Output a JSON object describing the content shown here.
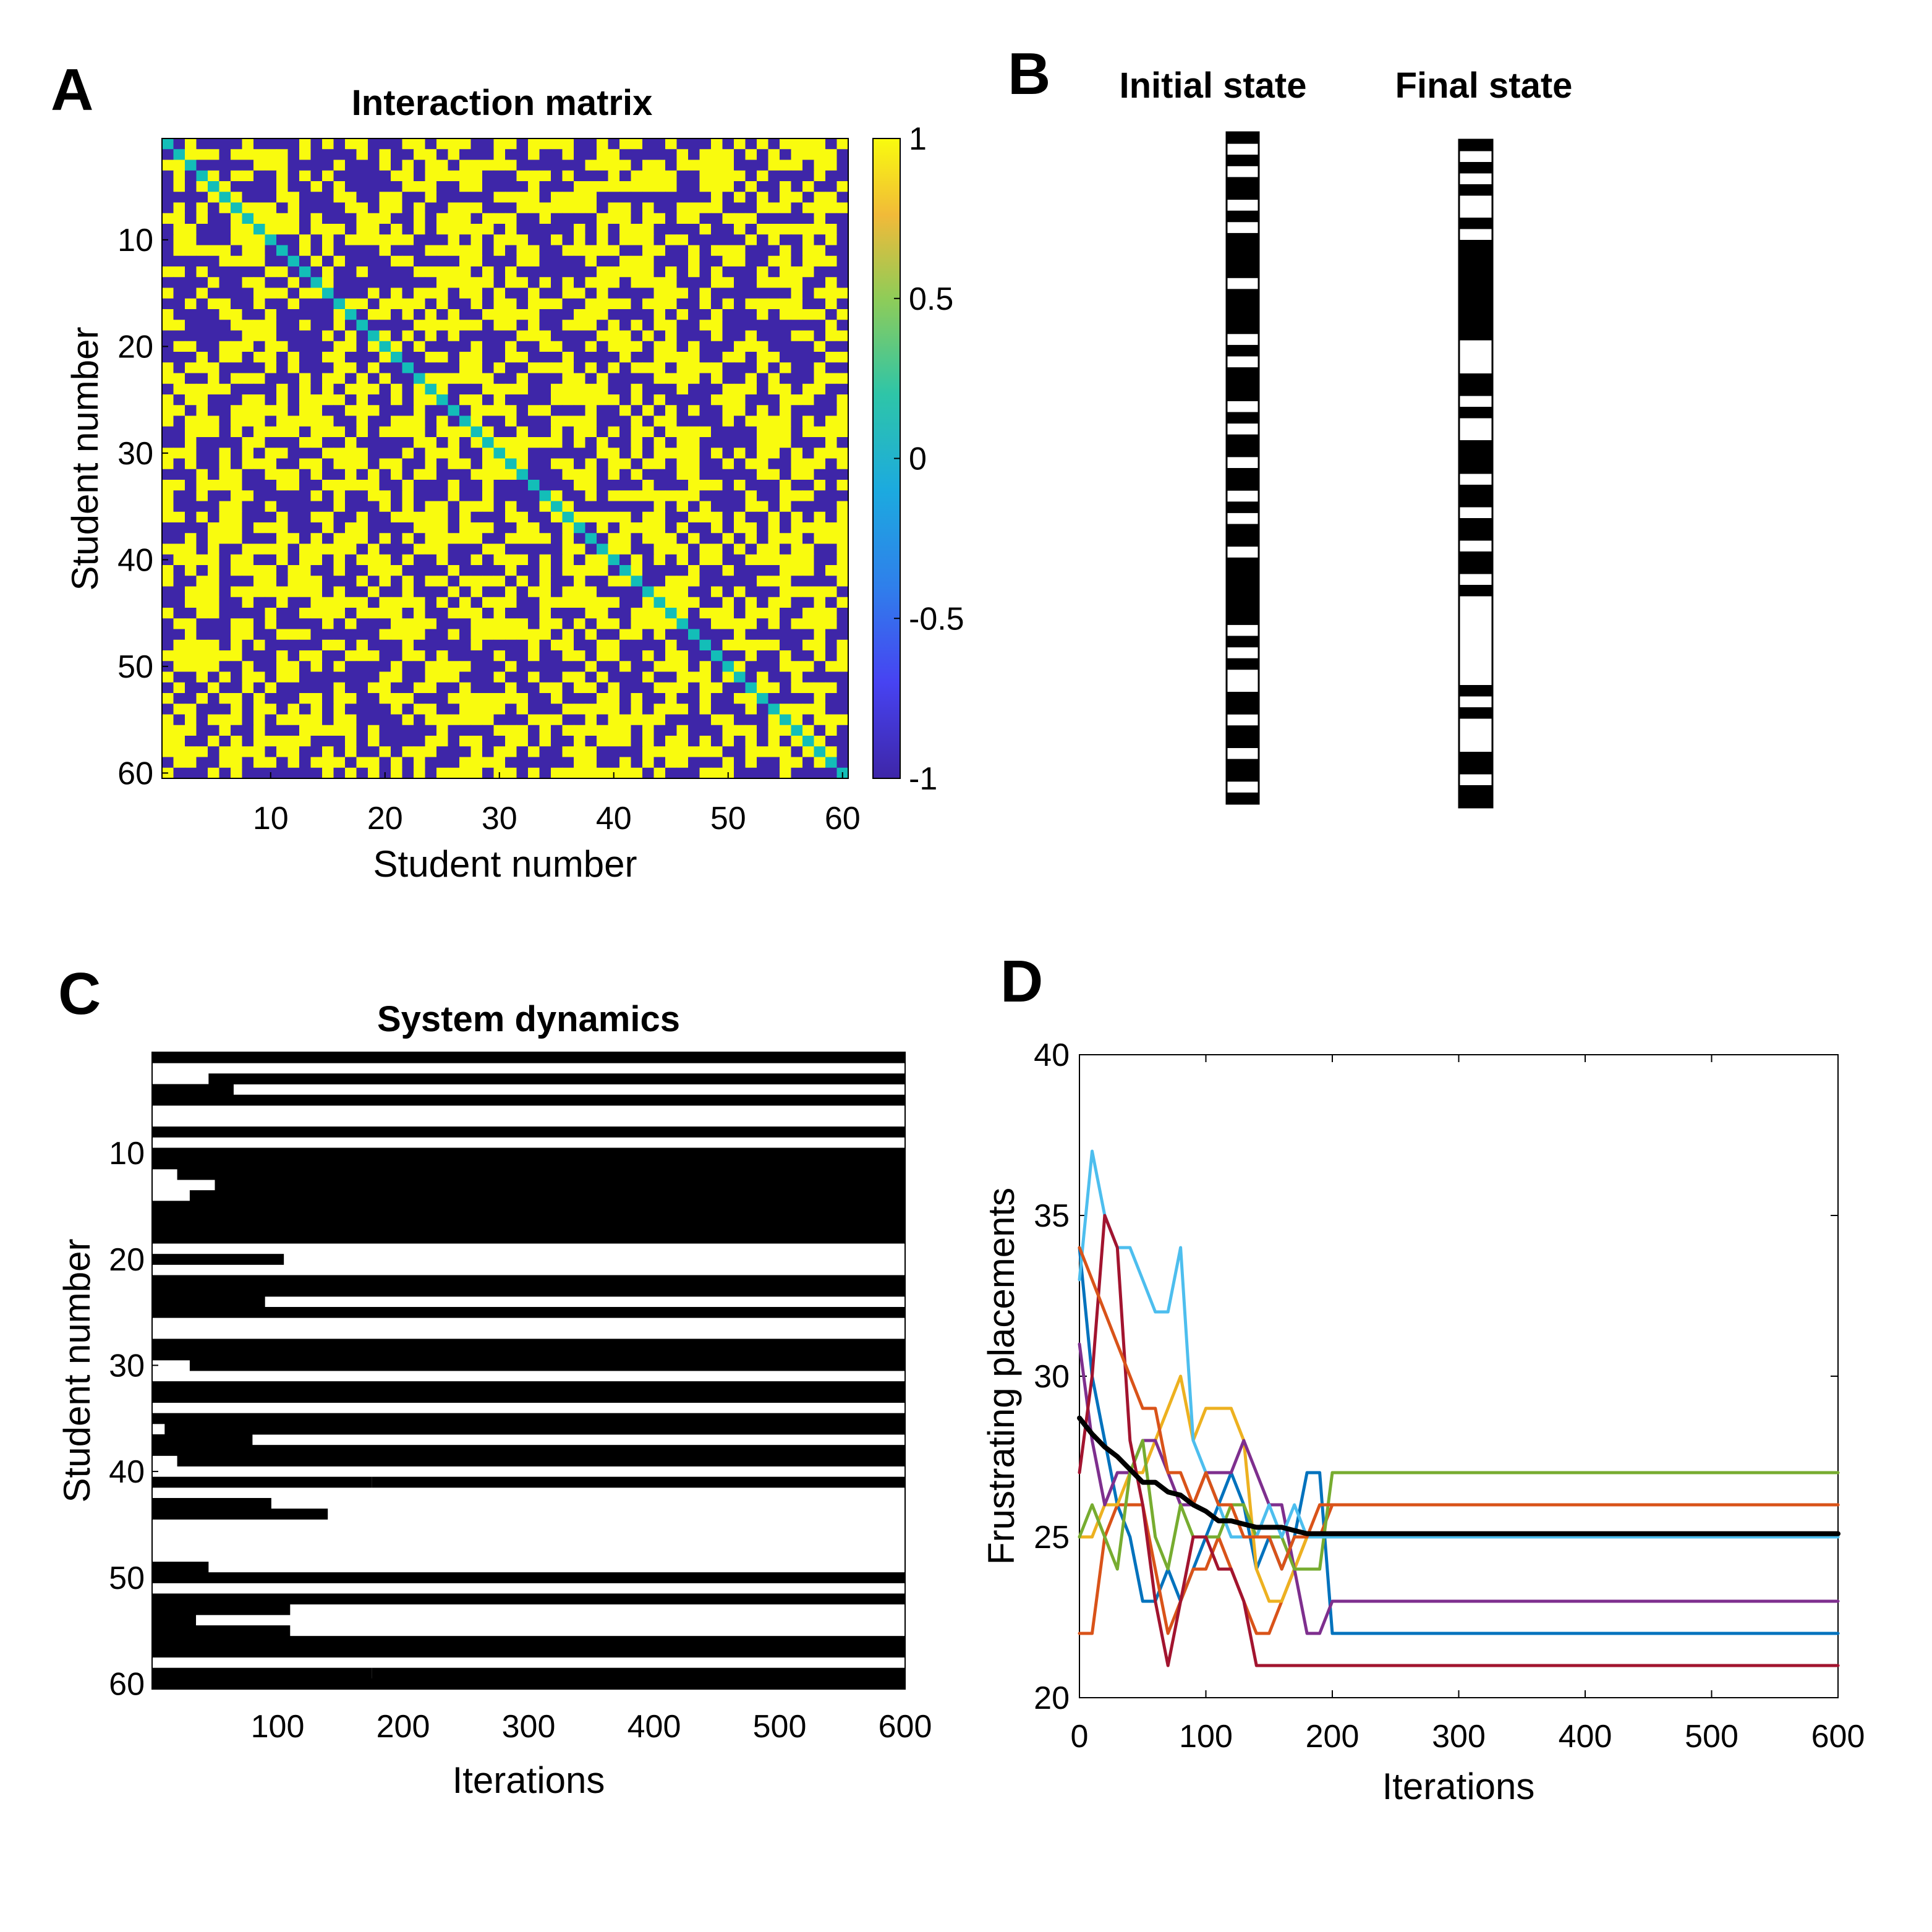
{
  "panels": {
    "A": {
      "letter": "A",
      "chart_data": {
        "type": "heatmap",
        "title": "Interaction matrix",
        "xlabel": "Student number",
        "ylabel": "Student number",
        "n": 60,
        "xticks": [
          "10",
          "20",
          "30",
          "40",
          "50",
          "60"
        ],
        "yticks": [
          "10",
          "20",
          "30",
          "40",
          "50",
          "60"
        ],
        "colorbar": {
          "ticks": [
            "1",
            "0.5",
            "0",
            "-0.5",
            "-1"
          ],
          "range": [
            -1,
            1
          ]
        },
        "values_description": "symmetric random matrix with entries -1 or 1, diagonal 0"
      }
    },
    "B": {
      "letter": "B",
      "chart_data": {
        "type": "heatmap",
        "columns": [
          {
            "title": "Initial state",
            "states": [
              1,
              0,
              1,
              0,
              1,
              1,
              0,
              1,
              0,
              1,
              1,
              1,
              1,
              0,
              1,
              1,
              1,
              1,
              0,
              1,
              0,
              1,
              1,
              1,
              0,
              1,
              0,
              1,
              1,
              0,
              1,
              1,
              0,
              1,
              0,
              1,
              1,
              0,
              1,
              1,
              1,
              1,
              1,
              1,
              0,
              1,
              0,
              1,
              0,
              0,
              1,
              1,
              0,
              1,
              1,
              0,
              1,
              1,
              0,
              1
            ]
          },
          {
            "title": "Final state",
            "states": [
              1,
              0,
              1,
              0,
              1,
              0,
              0,
              1,
              0,
              1,
              1,
              1,
              1,
              1,
              1,
              1,
              1,
              1,
              0,
              0,
              0,
              1,
              1,
              0,
              1,
              0,
              0,
              1,
              1,
              1,
              0,
              1,
              1,
              0,
              1,
              1,
              0,
              1,
              1,
              0,
              1,
              0,
              0,
              0,
              0,
              0,
              0,
              0,
              0,
              1,
              0,
              1,
              0,
              0,
              0,
              1,
              1,
              0,
              1,
              1
            ]
          }
        ]
      }
    },
    "C": {
      "letter": "C",
      "chart_data": {
        "type": "heatmap",
        "title": "System dynamics",
        "xlabel": "Iterations",
        "ylabel": "Student number",
        "xlim": [
          0,
          600
        ],
        "xticks": [
          "100",
          "200",
          "300",
          "400",
          "500",
          "600"
        ],
        "yticks": [
          "10",
          "20",
          "30",
          "40",
          "50",
          "60"
        ],
        "final_states": [
          1,
          0,
          1,
          0,
          1,
          0,
          0,
          1,
          0,
          1,
          1,
          1,
          1,
          1,
          1,
          1,
          1,
          1,
          0,
          0,
          0,
          1,
          1,
          0,
          1,
          0,
          0,
          1,
          1,
          1,
          0,
          1,
          1,
          0,
          1,
          1,
          0,
          1,
          1,
          0,
          1,
          0,
          0,
          0,
          0,
          0,
          0,
          0,
          0,
          1,
          0,
          1,
          0,
          0,
          0,
          1,
          1,
          0,
          1,
          1
        ],
        "changes": [
          {
            "row": 2,
            "until": 45,
            "value": 0
          },
          {
            "row": 3,
            "until": 65,
            "value": 1
          },
          {
            "row": 11,
            "until": 20,
            "value": 0
          },
          {
            "row": 12,
            "until": 50,
            "value": 0
          },
          {
            "row": 13,
            "until": 30,
            "value": 0
          },
          {
            "row": 19,
            "until": 105,
            "value": 1
          },
          {
            "row": 23,
            "until": 90,
            "value": 1
          },
          {
            "row": 25,
            "until": 170,
            "value": 0
          },
          {
            "row": 29,
            "until": 30,
            "value": 0
          },
          {
            "row": 30,
            "until": 70,
            "value": 0
          },
          {
            "row": 33,
            "until": 65,
            "value": 0
          },
          {
            "row": 35,
            "until": 10,
            "value": 0
          },
          {
            "row": 36,
            "until": 80,
            "value": 1
          },
          {
            "row": 38,
            "until": 20,
            "value": 0
          },
          {
            "row": 40,
            "until": 175,
            "value": 1
          },
          {
            "row": 42,
            "until": 95,
            "value": 1
          },
          {
            "row": 43,
            "until": 140,
            "value": 1
          },
          {
            "row": 48,
            "until": 45,
            "value": 1
          },
          {
            "row": 52,
            "until": 110,
            "value": 1
          },
          {
            "row": 53,
            "until": 35,
            "value": 1
          },
          {
            "row": 54,
            "until": 110,
            "value": 1
          },
          {
            "row": 56,
            "until": 200,
            "value": 1
          },
          {
            "row": 57,
            "until": 85,
            "value": 0
          },
          {
            "row": 58,
            "until": 175,
            "value": 1
          }
        ]
      }
    },
    "D": {
      "letter": "D",
      "chart_data": {
        "type": "line",
        "xlabel": "Iterations",
        "ylabel": "Frustrating placements",
        "xlim": [
          0,
          600
        ],
        "ylim": [
          20,
          40
        ],
        "xticks": [
          "0",
          "100",
          "200",
          "300",
          "400",
          "500",
          "600"
        ],
        "yticks": [
          "20",
          "25",
          "30",
          "35",
          "40"
        ],
        "x": [
          0,
          10,
          20,
          30,
          40,
          50,
          60,
          70,
          80,
          90,
          100,
          110,
          120,
          130,
          140,
          150,
          160,
          170,
          180,
          190,
          200,
          210,
          600
        ],
        "series": [
          {
            "color": "#0072BD",
            "values": [
              34,
              30,
              28,
              26,
              25,
              23,
              23,
              24,
              23,
              24,
              25,
              26,
              27,
              26,
              24,
              25,
              24,
              25,
              27,
              27,
              22,
              22,
              22
            ]
          },
          {
            "color": "#D95319",
            "values": [
              22,
              22,
              25,
              26,
              26,
              26,
              24,
              22,
              23,
              24,
              24,
              25,
              24,
              23,
              22,
              22,
              23,
              24,
              25,
              25,
              26,
              26,
              26
            ]
          },
          {
            "color": "#EDB120",
            "values": [
              25,
              25,
              26,
              26,
              27,
              27,
              28,
              29,
              30,
              28,
              29,
              29,
              29,
              28,
              24,
              23,
              23,
              24,
              25,
              25,
              25,
              25,
              25
            ]
          },
          {
            "color": "#7E2F8E",
            "values": [
              31,
              28,
              26,
              27,
              27,
              28,
              28,
              27,
              26,
              26,
              27,
              27,
              27,
              28,
              27,
              26,
              26,
              24,
              22,
              22,
              23,
              23,
              23
            ]
          },
          {
            "color": "#77AC30",
            "values": [
              25,
              26,
              25,
              24,
              27,
              28,
              25,
              24,
              26,
              25,
              25,
              25,
              26,
              26,
              25,
              25,
              25,
              24,
              24,
              24,
              27,
              27,
              27
            ]
          },
          {
            "color": "#4DBEEE",
            "values": [
              33,
              37,
              35,
              34,
              34,
              33,
              32,
              32,
              34,
              28,
              27,
              26,
              25,
              25,
              25,
              26,
              25,
              26,
              25,
              25,
              25,
              25,
              25
            ]
          },
          {
            "color": "#A2142F",
            "values": [
              27,
              30,
              35,
              34,
              28,
              26,
              23,
              21,
              23,
              25,
              25,
              24,
              24,
              23,
              21,
              21,
              21,
              21,
              21,
              21,
              21,
              21,
              21
            ]
          },
          {
            "color": "#D95319",
            "values": [
              34,
              33,
              32,
              31,
              30,
              29,
              29,
              27,
              27,
              26,
              27,
              26,
              26,
              25,
              25,
              25,
              24,
              25,
              25,
              26,
              26,
              26,
              26
            ]
          },
          {
            "color": "#000000",
            "values": [
              28.7,
              28.2,
              27.8,
              27.5,
              27.1,
              26.7,
              26.7,
              26.4,
              26.3,
              26.0,
              25.8,
              25.5,
              25.5,
              25.4,
              25.3,
              25.3,
              25.3,
              25.2,
              25.1,
              25.1,
              25.1,
              25.1,
              25.1
            ]
          }
        ]
      }
    }
  },
  "colors": {
    "parula_low": "#3E26A8",
    "parula_mid": "#13BEB8",
    "parula_high": "#F9FB0E",
    "state_on": "#000000",
    "state_off": "#ffffff"
  }
}
